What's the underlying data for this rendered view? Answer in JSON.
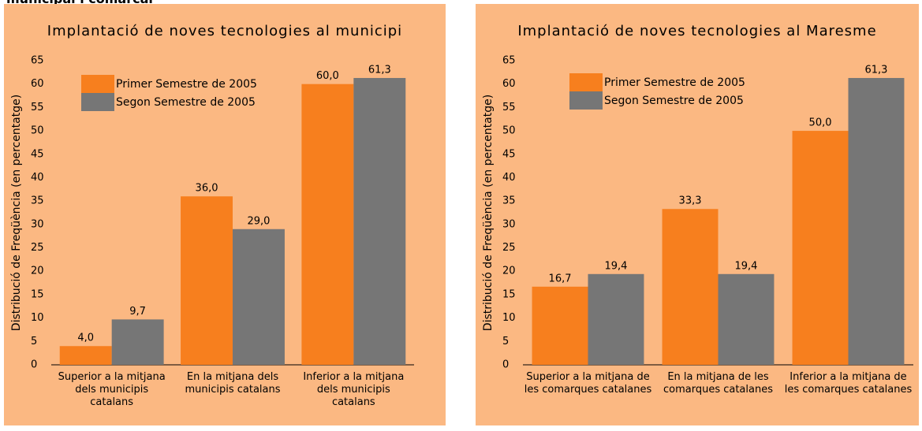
{
  "heading": "municipal i comarcal",
  "chart_data": [
    {
      "type": "bar",
      "title": "Implantació de noves tecnologies al municipi",
      "ylabel": "Distribució de Freqüència  (en percentatge)",
      "categories": [
        "Superior a la mitjana dels municipis catalans",
        "En la mitjana dels municipis catalans",
        "Inferior a la mitjana dels municipis catalans"
      ],
      "series": [
        {
          "name": "Primer Semestre de 2005",
          "color": "#f77f1e",
          "values": [
            4.0,
            36.0,
            60.0
          ],
          "value_labels": [
            "4,0",
            "36,0",
            "60,0"
          ]
        },
        {
          "name": "Segon Semestre de 2005",
          "color": "#767676",
          "values": [
            9.7,
            29.0,
            61.3
          ],
          "value_labels": [
            "9,7",
            "29,0",
            "61,3"
          ]
        }
      ],
      "ylim": [
        0,
        65
      ],
      "yticks": [
        0,
        5,
        10,
        15,
        20,
        25,
        30,
        35,
        40,
        45,
        50,
        55,
        60,
        65
      ],
      "legend": "top-left"
    },
    {
      "type": "bar",
      "title": "Implantació de noves tecnologies al Maresme",
      "ylabel": "Distribució de Freqüència  (en percentatge)",
      "categories": [
        "Superior a la mitjana de les comarques catalanes",
        "En la mitjana de les comarques catalanes",
        "Inferior a la mitjana de les comarques catalanes"
      ],
      "series": [
        {
          "name": "Primer Semestre de 2005",
          "color": "#f77f1e",
          "values": [
            16.7,
            33.3,
            50.0
          ],
          "value_labels": [
            "16,7",
            "33,3",
            "50,0"
          ]
        },
        {
          "name": "Segon Semestre de 2005",
          "color": "#767676",
          "values": [
            19.4,
            19.4,
            61.3
          ],
          "value_labels": [
            "19,4",
            "19,4",
            "61,3"
          ]
        }
      ],
      "ylim": [
        0,
        65
      ],
      "yticks": [
        0,
        5,
        10,
        15,
        20,
        25,
        30,
        35,
        40,
        45,
        50,
        55,
        60,
        65
      ],
      "legend": "top-left"
    }
  ]
}
